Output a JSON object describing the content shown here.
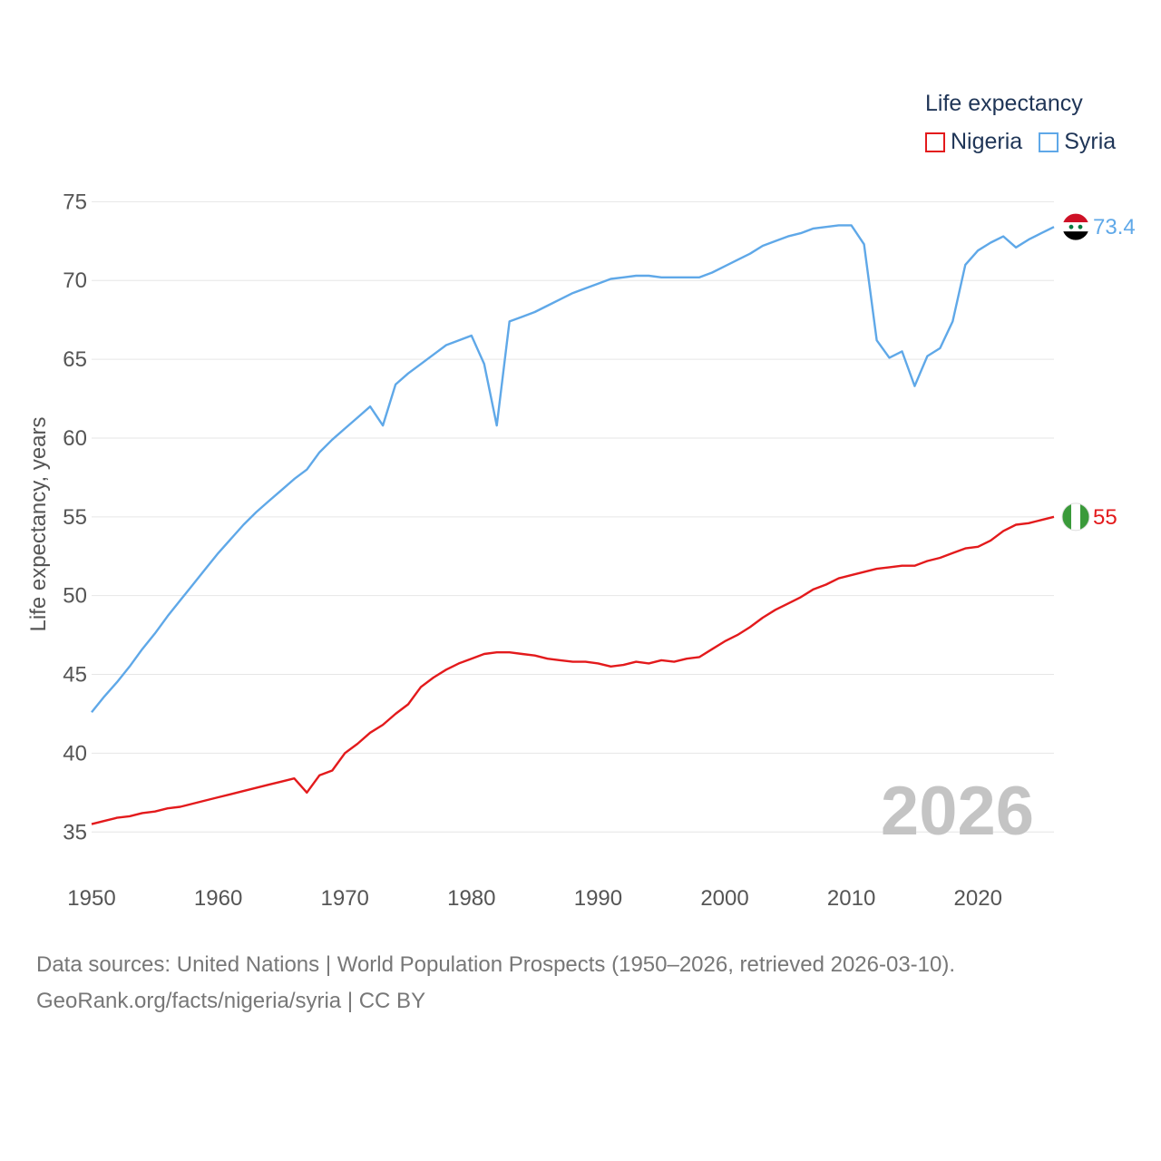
{
  "legend": {
    "title": "Life expectancy",
    "items": [
      {
        "name": "Nigeria",
        "color": "#e31a1c"
      },
      {
        "name": "Syria",
        "color": "#5fa8e8"
      }
    ]
  },
  "year_watermark": "2026",
  "footer": {
    "line1": "Data sources: United Nations | World Population Prospects (1950–2026, retrieved 2026-03-10).",
    "line2": "GeoRank.org/facts/nigeria/syria | CC BY"
  },
  "chart_data": {
    "type": "line",
    "title": "Life expectancy",
    "xlabel": "",
    "ylabel": "Life expectancy, years",
    "xlim": [
      1950,
      2026
    ],
    "ylim": [
      33,
      76
    ],
    "xticks": [
      1950,
      1960,
      1970,
      1980,
      1990,
      2000,
      2010,
      2020
    ],
    "yticks": [
      35,
      40,
      45,
      50,
      55,
      60,
      65,
      70,
      75
    ],
    "grid": true,
    "legend_position": "top-right",
    "x": [
      1950,
      1951,
      1952,
      1953,
      1954,
      1955,
      1956,
      1957,
      1958,
      1959,
      1960,
      1961,
      1962,
      1963,
      1964,
      1965,
      1966,
      1967,
      1968,
      1969,
      1970,
      1971,
      1972,
      1973,
      1974,
      1975,
      1976,
      1977,
      1978,
      1979,
      1980,
      1981,
      1982,
      1983,
      1984,
      1985,
      1986,
      1987,
      1988,
      1989,
      1990,
      1991,
      1992,
      1993,
      1994,
      1995,
      1996,
      1997,
      1998,
      1999,
      2000,
      2001,
      2002,
      2003,
      2004,
      2005,
      2006,
      2007,
      2008,
      2009,
      2010,
      2011,
      2012,
      2013,
      2014,
      2015,
      2016,
      2017,
      2018,
      2019,
      2020,
      2021,
      2022,
      2023,
      2024,
      2025,
      2026
    ],
    "series": [
      {
        "name": "Syria",
        "color": "#5fa8e8",
        "end_label": "73.4",
        "values": [
          42.6,
          43.6,
          44.5,
          45.5,
          46.6,
          47.6,
          48.7,
          49.7,
          50.7,
          51.7,
          52.7,
          53.6,
          54.5,
          55.3,
          56.0,
          56.7,
          57.4,
          58.0,
          59.1,
          59.9,
          60.6,
          61.3,
          62.0,
          60.8,
          63.4,
          64.1,
          64.7,
          65.3,
          65.9,
          66.2,
          66.5,
          64.7,
          60.8,
          67.4,
          67.7,
          68.0,
          68.4,
          68.8,
          69.2,
          69.5,
          69.8,
          70.1,
          70.2,
          70.3,
          70.3,
          70.2,
          70.2,
          70.2,
          70.2,
          70.5,
          70.9,
          71.3,
          71.7,
          72.2,
          72.5,
          72.8,
          73.0,
          73.3,
          73.4,
          73.5,
          73.5,
          72.3,
          66.2,
          65.1,
          65.5,
          63.3,
          65.2,
          65.7,
          67.4,
          71.0,
          71.9,
          72.4,
          72.8,
          72.1,
          72.6,
          73.0,
          73.4
        ]
      },
      {
        "name": "Nigeria",
        "color": "#e31a1c",
        "end_label": "55",
        "values": [
          35.5,
          35.7,
          35.9,
          36.0,
          36.2,
          36.3,
          36.5,
          36.6,
          36.8,
          37.0,
          37.2,
          37.4,
          37.6,
          37.8,
          38.0,
          38.2,
          38.4,
          37.5,
          38.6,
          38.9,
          40.0,
          40.6,
          41.3,
          41.8,
          42.5,
          43.1,
          44.2,
          44.8,
          45.3,
          45.7,
          46.0,
          46.3,
          46.4,
          46.4,
          46.3,
          46.2,
          46.0,
          45.9,
          45.8,
          45.8,
          45.7,
          45.5,
          45.6,
          45.8,
          45.7,
          45.9,
          45.8,
          46.0,
          46.1,
          46.6,
          47.1,
          47.5,
          48.0,
          48.6,
          49.1,
          49.5,
          49.9,
          50.4,
          50.7,
          51.1,
          51.3,
          51.5,
          51.7,
          51.8,
          51.9,
          51.9,
          52.2,
          52.4,
          52.7,
          53.0,
          53.1,
          53.5,
          54.1,
          54.5,
          54.6,
          54.8,
          55.0
        ]
      }
    ]
  }
}
